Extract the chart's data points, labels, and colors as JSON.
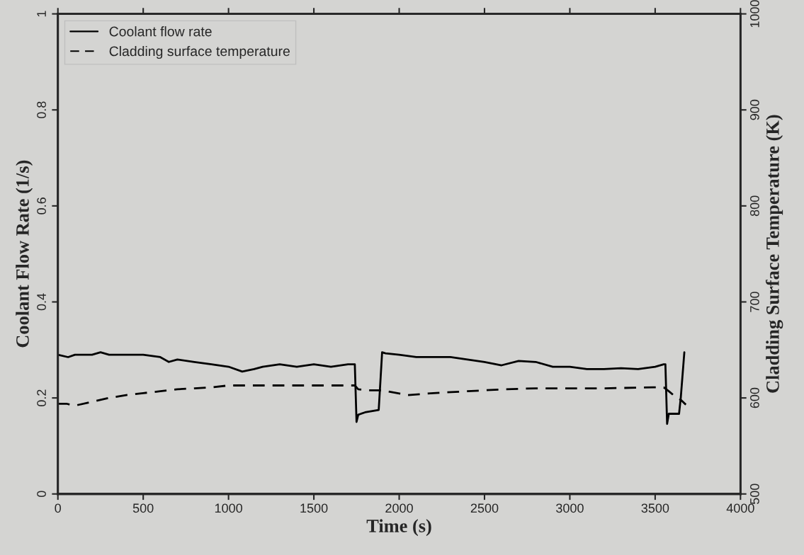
{
  "chart_data": {
    "type": "line",
    "xlabel": "Time (s)",
    "ylabel": "Coolant Flow Rate (1/s)",
    "y2label": "Cladding Surface Temperature (K)",
    "xlim": [
      0,
      4000
    ],
    "xticks": [
      0,
      500,
      1000,
      1500,
      2000,
      2500,
      3000,
      3500,
      4000
    ],
    "ylim": [
      0,
      1
    ],
    "yticks": [
      0,
      0.2,
      0.4,
      0.6,
      0.8,
      1
    ],
    "y2lim": [
      500,
      1000
    ],
    "y2ticks": [
      500,
      600,
      700,
      800,
      900,
      1000
    ],
    "legend": "top left",
    "grid": false,
    "series": [
      {
        "name": "Coolant flow rate",
        "color": "#000000",
        "line_style": "solid",
        "x": [
          0,
          60,
          100,
          200,
          250,
          300,
          400,
          500,
          600,
          650,
          700,
          800,
          900,
          1000,
          1080,
          1150,
          1200,
          1300,
          1400,
          1500,
          1600,
          1700,
          1740,
          1750,
          1760,
          1800,
          1880,
          1900,
          1920,
          2000,
          2100,
          2200,
          2300,
          2400,
          2500,
          2600,
          2700,
          2800,
          2900,
          3000,
          3100,
          3200,
          3300,
          3400,
          3500,
          3550,
          3560,
          3570,
          3580,
          3640,
          3650,
          3671
        ],
        "values": [
          0.29,
          0.285,
          0.29,
          0.29,
          0.295,
          0.29,
          0.29,
          0.29,
          0.285,
          0.275,
          0.28,
          0.275,
          0.27,
          0.265,
          0.255,
          0.26,
          0.265,
          0.27,
          0.265,
          0.27,
          0.265,
          0.27,
          0.27,
          0.15,
          0.165,
          0.17,
          0.175,
          0.295,
          0.293,
          0.29,
          0.285,
          0.285,
          0.285,
          0.28,
          0.275,
          0.268,
          0.277,
          0.275,
          0.265,
          0.265,
          0.26,
          0.26,
          0.262,
          0.26,
          0.265,
          0.27,
          0.27,
          0.146,
          0.167,
          0.167,
          0.2,
          0.295
        ]
      },
      {
        "name": "Cladding surface temperature",
        "color": "#000000",
        "line_style": "dashed",
        "axis": "y2",
        "x": [
          0,
          50,
          100,
          200,
          300,
          400,
          500,
          600,
          700,
          800,
          900,
          1000,
          1200,
          1400,
          1600,
          1740,
          1760,
          1810,
          1900,
          2050,
          2200,
          2400,
          2612,
          2800,
          3000,
          3200,
          3488,
          3550,
          3580,
          3620,
          3650,
          3680
        ],
        "values": [
          594,
          594,
          592,
          596,
          600,
          603,
          605,
          607,
          609,
          610,
          611,
          613,
          613,
          613,
          613,
          613,
          609,
          608,
          608,
          603,
          605,
          607,
          609,
          610,
          610,
          610,
          611,
          611,
          607,
          601,
          598,
          593
        ]
      }
    ]
  }
}
